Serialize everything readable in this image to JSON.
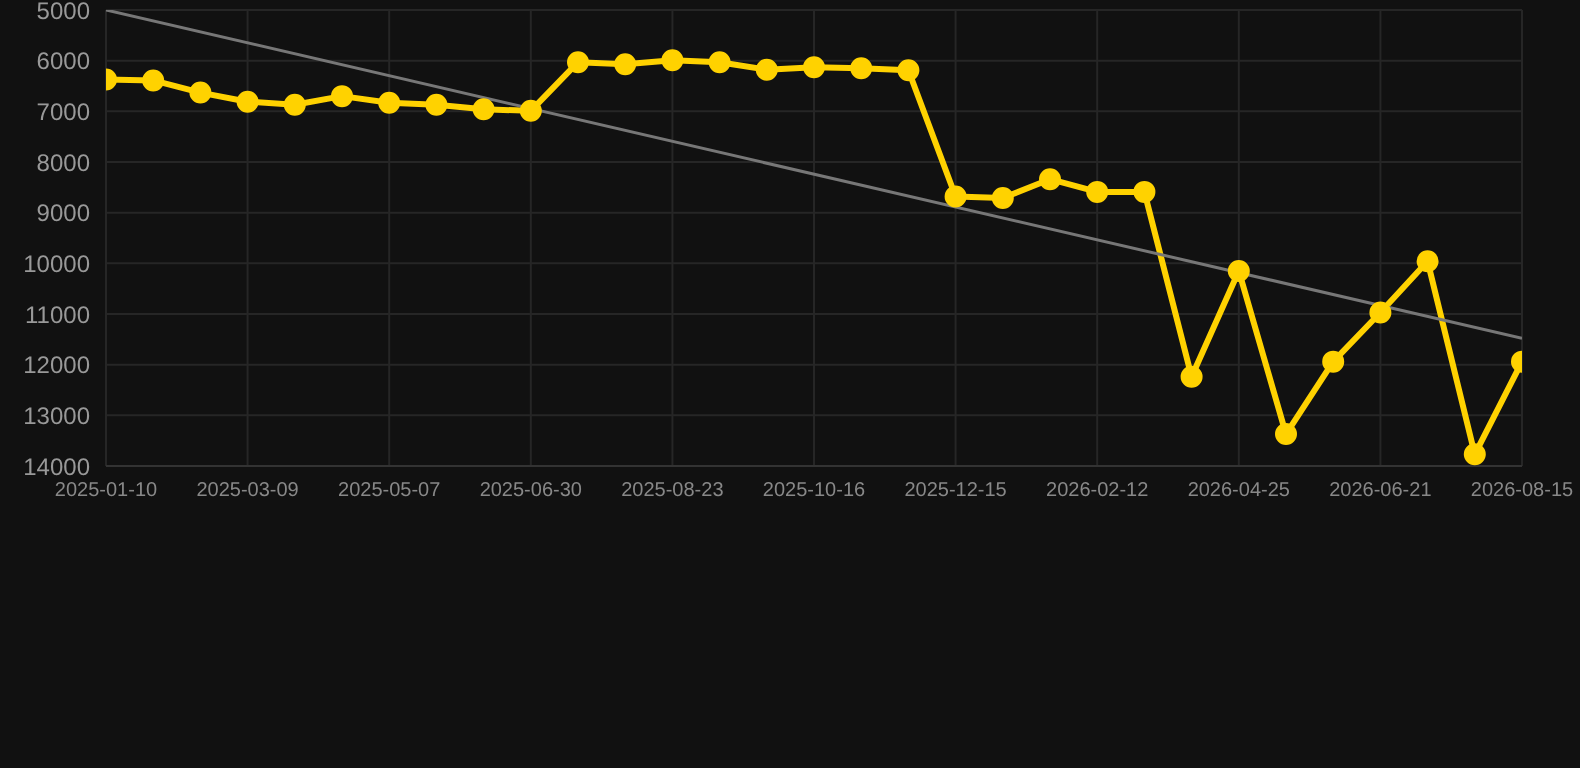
{
  "chart_data": {
    "type": "line",
    "categories": [
      "2025-01-10",
      null,
      null,
      "2025-03-09",
      null,
      null,
      "2025-05-07",
      null,
      null,
      "2025-06-30",
      null,
      null,
      "2025-08-23",
      null,
      null,
      "2025-10-16",
      null,
      null,
      "2025-12-15",
      null,
      null,
      "2026-02-12",
      null,
      null,
      "2026-04-25",
      null,
      null,
      "2026-06-21",
      null,
      null,
      "2026-08-15"
    ],
    "series": [
      {
        "color": "#ffd200",
        "marker": "circle",
        "values": [
          6370,
          6390,
          6630,
          6810,
          6870,
          6700,
          6830,
          6870,
          6960,
          6990,
          6030,
          6070,
          5990,
          6030,
          6180,
          6130,
          6150,
          6190,
          8680,
          8710,
          8340,
          8590,
          8590,
          12240,
          10150,
          13370,
          11940,
          10970,
          9960,
          13770,
          11940
        ]
      },
      {
        "type": "line",
        "color": "#777777",
        "marker": "none",
        "values": [
          5000,
          null,
          null,
          null,
          null,
          null,
          null,
          null,
          null,
          null,
          null,
          null,
          null,
          null,
          null,
          null,
          null,
          null,
          null,
          null,
          null,
          null,
          null,
          null,
          null,
          null,
          null,
          null,
          null,
          null,
          11480
        ]
      }
    ],
    "ylim": [
      14000,
      5000
    ],
    "yticks": [
      5000,
      6000,
      7000,
      8000,
      9000,
      10000,
      11000,
      12000,
      13000,
      14000
    ],
    "grid": true
  }
}
